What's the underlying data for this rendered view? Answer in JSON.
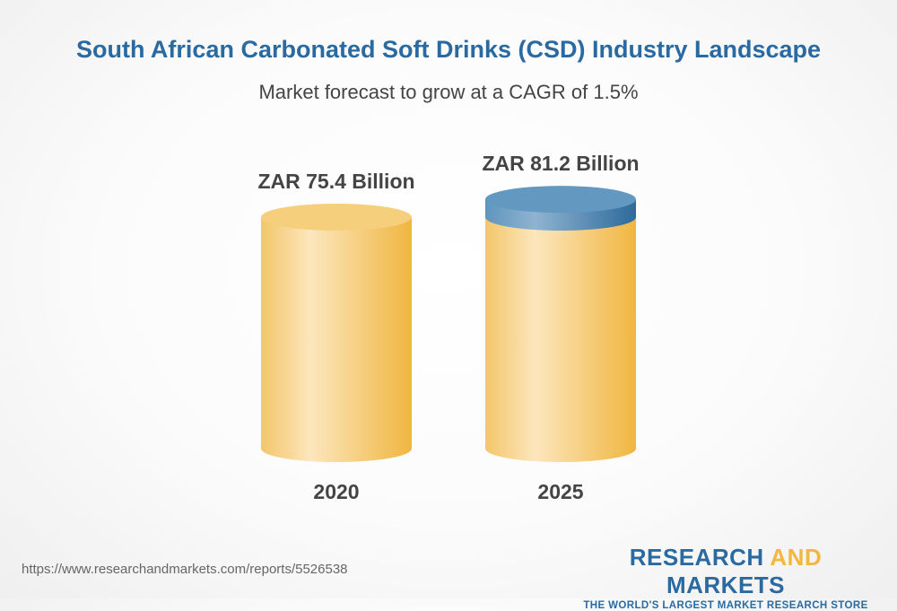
{
  "chart_data": {
    "type": "bar",
    "title": "South African Carbonated Soft Drinks (CSD) Industry Landscape",
    "subtitle": "Market forecast to grow at a CAGR of 1.5%",
    "categories": [
      "2020",
      "2025"
    ],
    "values": [
      75.4,
      81.2
    ],
    "data_labels": [
      "ZAR 75.4 Billion",
      "ZAR 81.2 Billion"
    ],
    "unit": "ZAR Billion",
    "style": "3d-cylinder",
    "colors": {
      "bar": "#f2c15a",
      "growth": "#5f95bd",
      "title": "#2a6aa0"
    }
  },
  "footer": {
    "url": "https://www.researchandmarkets.com/reports/5526538"
  },
  "logo": {
    "part1": "RESEARCH ",
    "part2": "AND",
    "part3": " MARKETS",
    "tagline": "THE WORLD'S LARGEST MARKET RESEARCH STORE"
  }
}
